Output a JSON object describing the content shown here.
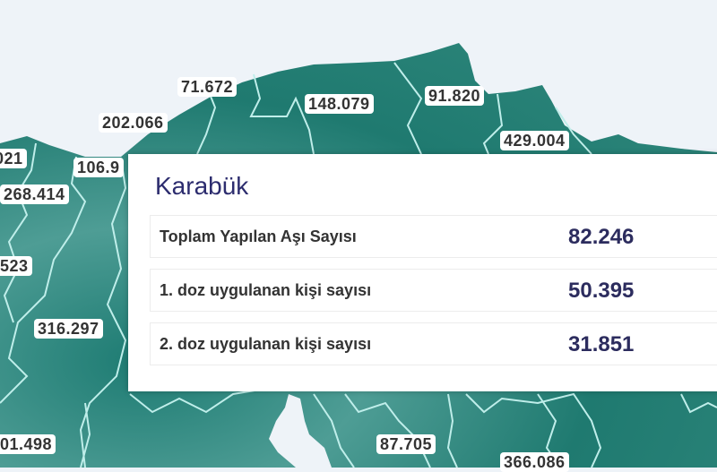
{
  "colors": {
    "land": "#1f7a70",
    "border": "#bfeeea",
    "sea": "#eef3f8",
    "tooltip_value": "#2c2c5e",
    "tooltip_title": "#2c2c6e"
  },
  "map_labels": [
    "71.672",
    "148.079",
    "91.820",
    "202.066",
    "429.004",
    "021",
    "106.9",
    "268.414",
    "523",
    "316.297",
    "01.498",
    "87.705",
    "366.086"
  ],
  "tooltip": {
    "title": "Karabük",
    "rows": [
      {
        "label": "Toplam Yapılan Aşı Sayısı",
        "value": "82.246"
      },
      {
        "label": "1. doz uygulanan kişi sayısı",
        "value": "50.395"
      },
      {
        "label": "2. doz uygulanan kişi sayısı",
        "value": "31.851"
      }
    ]
  }
}
